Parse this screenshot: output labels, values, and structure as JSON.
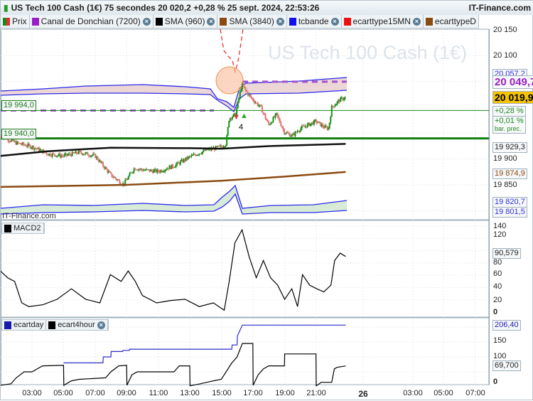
{
  "header": {
    "title": "US Tech 100 Cash (1€) 75 secondes 20 020,2 +0,28 % 25 sept. 2024, 22:53:26",
    "site": "IT-Finance.com",
    "watermark": "US Tech 100 Cash (1€)",
    "footer_logo": "IT-Finance.com"
  },
  "legend": [
    {
      "label": "Prix",
      "color": "#1a8a1a",
      "closable": false
    },
    {
      "label": "Canal de Donchian (7200)",
      "color": "#9b1fc8",
      "closable": true
    },
    {
      "label": "SMA (960)",
      "color": "#000000",
      "closable": true
    },
    {
      "label": "SMA (3840)",
      "color": "#8b4a10",
      "closable": true
    },
    {
      "label": "tcbande",
      "color": "#1010ee",
      "closable": true
    },
    {
      "label": "ecarttype15MN",
      "color": "#ee1010",
      "closable": true
    },
    {
      "label": "ecarttypeD",
      "color": "#8b4a10",
      "closable": false
    }
  ],
  "macd_legend": {
    "label": "MACD2",
    "color": "#000000"
  },
  "ecart_legend": [
    {
      "label": "ecartday",
      "color": "#1a1aaa"
    },
    {
      "label": "ecart4hour",
      "color": "#000000"
    }
  ],
  "annotation": {
    "count": "4",
    "icons": [
      "arrow-down-red",
      "arrow-up-green"
    ]
  },
  "chart_data": [
    {
      "type": "line",
      "panel": "price",
      "ylim": [
        19800,
        20155
      ],
      "yticks": [
        "20 150",
        "20 100",
        "19 900",
        "19 850"
      ],
      "xticks": [
        "03:00",
        "05:00",
        "07:00",
        "09:00",
        "11:00",
        "13:00",
        "15:00",
        "17:00",
        "19:00",
        "21:00",
        "26",
        "03:00",
        "05:00",
        "07:00"
      ],
      "series": [
        {
          "name": "Prix",
          "points": [
            [
              "01:00",
              19945
            ],
            [
              "02:00",
              19931
            ],
            [
              "03:00",
              19924
            ],
            [
              "04:00",
              19910
            ],
            [
              "05:00",
              19906
            ],
            [
              "06:00",
              19913
            ],
            [
              "07:00",
              19906
            ],
            [
              "08:00",
              19869
            ],
            [
              "08:48",
              19851
            ],
            [
              "09:30",
              19883
            ],
            [
              "10:00",
              19879
            ],
            [
              "11:00",
              19876
            ],
            [
              "12:00",
              19887
            ],
            [
              "13:00",
              19904
            ],
            [
              "14:00",
              19917
            ],
            [
              "14:30",
              19920
            ],
            [
              "15:00",
              19924
            ],
            [
              "15:18",
              19930
            ],
            [
              "15:30",
              19979
            ],
            [
              "15:54",
              19986
            ],
            [
              "16:18",
              20044
            ],
            [
              "16:48",
              20021
            ],
            [
              "17:30",
              20000
            ],
            [
              "18:00",
              19966
            ],
            [
              "18:30",
              19986
            ],
            [
              "19:00",
              19952
            ],
            [
              "19:30",
              19945
            ],
            [
              "20:00",
              19959
            ],
            [
              "20:30",
              19966
            ],
            [
              "21:00",
              19973
            ],
            [
              "21:30",
              19962
            ],
            [
              "21:48",
              19959
            ],
            [
              "22:00",
              20000
            ],
            [
              "22:30",
              20014
            ],
            [
              "22:53",
              20019.9
            ]
          ]
        },
        {
          "name": "SMA (960)",
          "points": [
            [
              "01:00",
              19906
            ],
            [
              "04:00",
              19915
            ],
            [
              "08:00",
              19922
            ],
            [
              "13:00",
              19921
            ],
            [
              "15:00",
              19920
            ],
            [
              "18:00",
              19925
            ],
            [
              "22:53",
              19929.3
            ]
          ]
        },
        {
          "name": "SMA (3840)",
          "points": [
            [
              "01:00",
              19846
            ],
            [
              "09:00",
              19850
            ],
            [
              "15:00",
              19858
            ],
            [
              "19:00",
              19866
            ],
            [
              "22:53",
              19874.9
            ]
          ]
        }
      ],
      "levels": {
        "donchian_high": 20049.7,
        "tcbande_high": 20057.2,
        "last": 20019.9,
        "level_1": 19994.0,
        "level_2": 19940.0,
        "sma960": 19929.3,
        "sma3840": 19874.9,
        "tcbande_low_1": 19820.7,
        "tcbande_low_2": 19801.5
      },
      "labels": {
        "tcbande_high": "20 057,2",
        "donchian_high": "20 049,7",
        "last": "20 019,9",
        "change": "+0,28 %",
        "change_prev": "+0,01 %",
        "change_prev_note": "bar. prec.",
        "sma960": "19 929,3",
        "sma3840": "19 874,9",
        "tcbande_low_1": "19 820,7",
        "tcbande_low_2": "19 801,5",
        "level_1": "19 994,0",
        "level_2": "19 940,0"
      }
    },
    {
      "type": "line",
      "panel": "macd",
      "ylim": [
        0,
        145
      ],
      "yticks": [
        "140",
        "120",
        "80",
        "60",
        "40",
        "20",
        "0"
      ],
      "series": [
        {
          "name": "MACD2",
          "points": [
            [
              "01:00",
              67
            ],
            [
              "01:27",
              56
            ],
            [
              "01:54",
              50
            ],
            [
              "02:21",
              15
            ],
            [
              "02:48",
              9
            ],
            [
              "03:42",
              12
            ],
            [
              "04:36",
              21
            ],
            [
              "05:30",
              38
            ],
            [
              "06:24",
              21
            ],
            [
              "07:18",
              15
            ],
            [
              "07:58",
              61
            ],
            [
              "08:39",
              50
            ],
            [
              "09:06",
              67
            ],
            [
              "09:33",
              50
            ],
            [
              "10:00",
              27
            ],
            [
              "10:54",
              15
            ],
            [
              "11:48",
              19
            ],
            [
              "12:42",
              21
            ],
            [
              "13:36",
              9
            ],
            [
              "14:30",
              15
            ],
            [
              "15:11",
              3
            ],
            [
              "15:30",
              50
            ],
            [
              "15:52",
              113
            ],
            [
              "16:19",
              134
            ],
            [
              "16:46",
              90
            ],
            [
              "17:13",
              56
            ],
            [
              "17:40",
              84
            ],
            [
              "18:07",
              56
            ],
            [
              "18:34",
              44
            ],
            [
              "19:01",
              21
            ],
            [
              "19:28",
              38
            ],
            [
              "19:50",
              9
            ],
            [
              "20:09",
              61
            ],
            [
              "20:36",
              44
            ],
            [
              "21:03",
              38
            ],
            [
              "21:30",
              33
            ],
            [
              "21:57",
              44
            ],
            [
              "22:11",
              84
            ],
            [
              "22:32",
              96
            ],
            [
              "22:53",
              90.579
            ]
          ]
        }
      ],
      "labels": {
        "last": "90,579"
      }
    },
    {
      "type": "line",
      "panel": "ecart",
      "ylim": [
        0,
        215
      ],
      "yticks": [
        "150",
        "100",
        "0"
      ],
      "series": [
        {
          "name": "ecartday",
          "points": [
            [
              "05:00",
              80
            ],
            [
              "07:30",
              80
            ],
            [
              "07:31",
              100
            ],
            [
              "08:00",
              100
            ],
            [
              "08:01",
              118
            ],
            [
              "08:45",
              118
            ],
            [
              "08:46",
              122
            ],
            [
              "09:10",
              122
            ],
            [
              "09:11",
              126
            ],
            [
              "15:40",
              126
            ],
            [
              "15:41",
              140
            ],
            [
              "16:00",
              140
            ],
            [
              "16:01",
              170
            ],
            [
              "16:20",
              206.4
            ],
            [
              "22:53",
              206.4
            ]
          ]
        },
        {
          "name": "ecart4hour",
          "points": [
            [
              "01:00",
              5
            ],
            [
              "01:40",
              10
            ],
            [
              "02:00",
              30
            ],
            [
              "02:30",
              50
            ],
            [
              "03:00",
              50
            ],
            [
              "03:40",
              70
            ],
            [
              "05:00",
              72
            ],
            [
              "05:01",
              5
            ],
            [
              "05:30",
              20
            ],
            [
              "06:00",
              25
            ],
            [
              "07:40",
              30
            ],
            [
              "08:00",
              50
            ],
            [
              "08:30",
              70
            ],
            [
              "09:00",
              72
            ],
            [
              "09:01",
              5
            ],
            [
              "09:20",
              40
            ],
            [
              "09:40",
              50
            ],
            [
              "12:00",
              50
            ],
            [
              "12:20",
              70
            ],
            [
              "13:00",
              70
            ],
            [
              "13:01",
              3
            ],
            [
              "13:40",
              10
            ],
            [
              "14:30",
              20
            ],
            [
              "15:00",
              25
            ],
            [
              "15:40",
              80
            ],
            [
              "16:00",
              100
            ],
            [
              "16:20",
              145
            ],
            [
              "17:00",
              145
            ],
            [
              "17:01",
              5
            ],
            [
              "17:20",
              40
            ],
            [
              "17:40",
              60
            ],
            [
              "18:00",
              70
            ],
            [
              "19:00",
              70
            ],
            [
              "19:01",
              110
            ],
            [
              "21:00",
              110
            ],
            [
              "21:01",
              3
            ],
            [
              "21:20",
              15
            ],
            [
              "22:00",
              15
            ],
            [
              "22:10",
              60
            ],
            [
              "22:20",
              65
            ],
            [
              "22:53",
              69.7
            ]
          ]
        }
      ],
      "labels": {
        "ecartday": "206,40",
        "ecart4hour": "69,700"
      }
    }
  ]
}
